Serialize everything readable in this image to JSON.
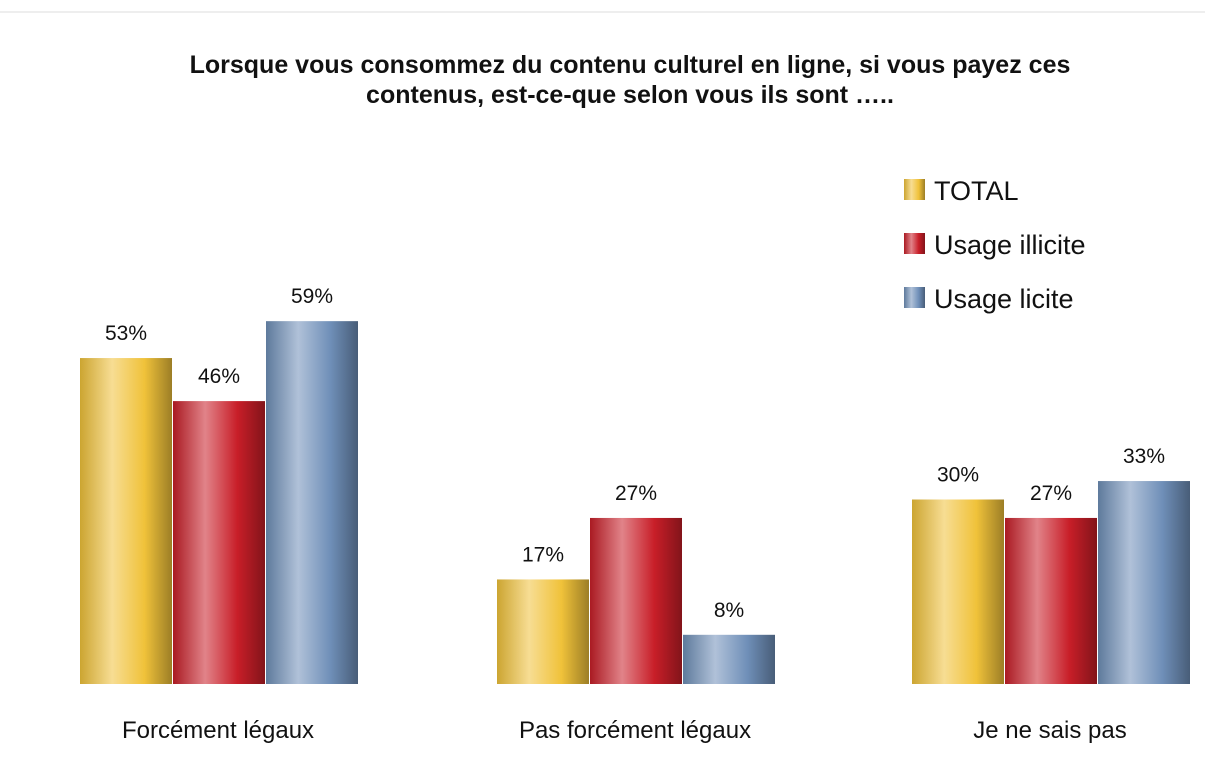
{
  "chart_data": {
    "type": "bar",
    "title": [
      "Lorsque vous consommez du contenu culturel en ligne, si vous payez ces",
      "contenus, est-ce-que selon vous ils sont ….."
    ],
    "categories": [
      "Forcément légaux",
      "Pas forcément légaux",
      "Je ne sais pas"
    ],
    "series": [
      {
        "name": "TOTAL",
        "color": "#f0c23a",
        "values": [
          53,
          17,
          30
        ],
        "value_labels": [
          "53%",
          "17%",
          "30%"
        ]
      },
      {
        "name": "Usage illicite",
        "color": "#c81e28",
        "values": [
          46,
          27,
          27
        ],
        "value_labels": [
          "46%",
          "27%",
          "27%"
        ]
      },
      {
        "name": "Usage licite",
        "color": "#6f8fb8",
        "values": [
          59,
          8,
          33
        ],
        "value_labels": [
          "59%",
          "8%",
          "33%"
        ]
      }
    ],
    "legend": "upper right"
  }
}
